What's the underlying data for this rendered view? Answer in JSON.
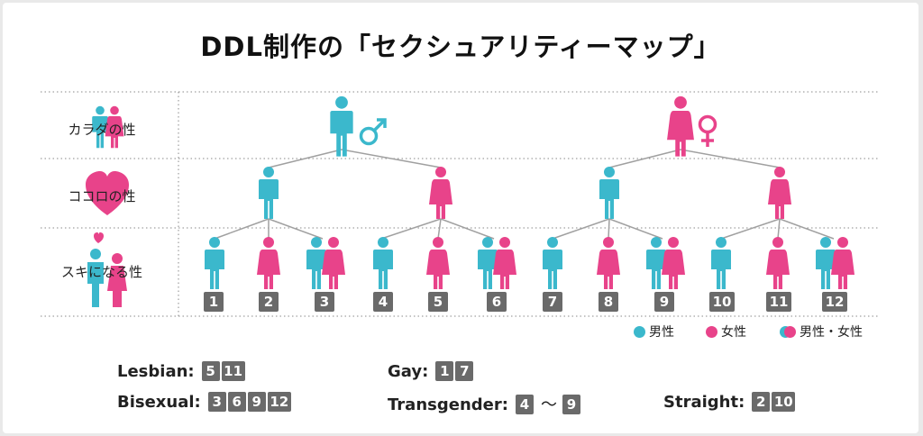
{
  "title": "DDL制作の「セクシュアリティーマップ」",
  "rows": {
    "body": "カラダの性",
    "mind": "ココロの性",
    "love": "スキになる性"
  },
  "numbers": [
    "1",
    "2",
    "3",
    "4",
    "5",
    "6",
    "7",
    "8",
    "9",
    "10",
    "11",
    "12"
  ],
  "legend": {
    "male": "男性",
    "female": "女性",
    "both": "男性・女性"
  },
  "colors": {
    "male": "#3bb8cc",
    "female": "#e8438a",
    "chip": "#6a6a6a",
    "line": "#9a9a9a"
  },
  "summary": {
    "lesbian": {
      "label": "Lesbian:",
      "nums": [
        "5",
        "11"
      ]
    },
    "gay": {
      "label": "Gay:",
      "nums": [
        "1",
        "7"
      ]
    },
    "bisexual": {
      "label": "Bisexual:",
      "nums": [
        "3",
        "6",
        "9",
        "12"
      ]
    },
    "transgender": {
      "label": "Transgender:",
      "from": "4",
      "tilde": "〜",
      "to": "9"
    },
    "straight": {
      "label": "Straight:",
      "nums": [
        "2",
        "10"
      ]
    }
  }
}
